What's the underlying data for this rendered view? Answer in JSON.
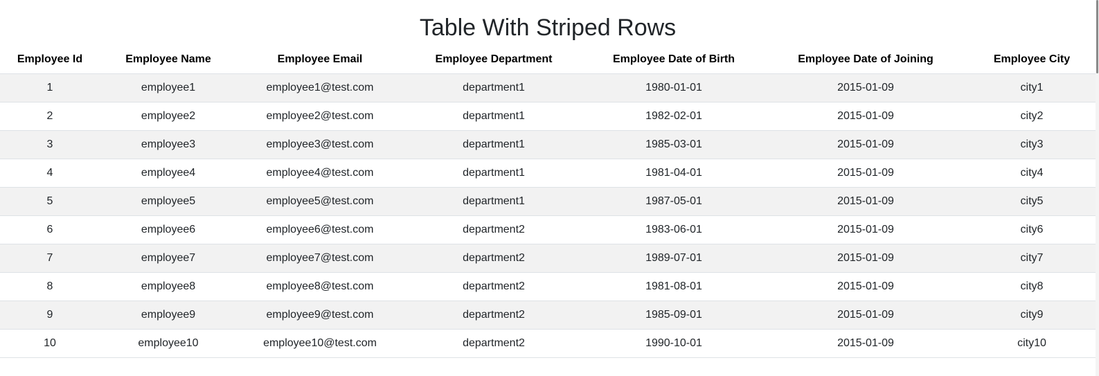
{
  "page": {
    "title": "Table With Striped Rows"
  },
  "table": {
    "headers": [
      "Employee Id",
      "Employee Name",
      "Employee Email",
      "Employee Department",
      "Employee Date of Birth",
      "Employee Date of Joining",
      "Employee City"
    ],
    "rows": [
      [
        "1",
        "employee1",
        "employee1@test.com",
        "department1",
        "1980-01-01",
        "2015-01-09",
        "city1"
      ],
      [
        "2",
        "employee2",
        "employee2@test.com",
        "department1",
        "1982-02-01",
        "2015-01-09",
        "city2"
      ],
      [
        "3",
        "employee3",
        "employee3@test.com",
        "department1",
        "1985-03-01",
        "2015-01-09",
        "city3"
      ],
      [
        "4",
        "employee4",
        "employee4@test.com",
        "department1",
        "1981-04-01",
        "2015-01-09",
        "city4"
      ],
      [
        "5",
        "employee5",
        "employee5@test.com",
        "department1",
        "1987-05-01",
        "2015-01-09",
        "city5"
      ],
      [
        "6",
        "employee6",
        "employee6@test.com",
        "department2",
        "1983-06-01",
        "2015-01-09",
        "city6"
      ],
      [
        "7",
        "employee7",
        "employee7@test.com",
        "department2",
        "1989-07-01",
        "2015-01-09",
        "city7"
      ],
      [
        "8",
        "employee8",
        "employee8@test.com",
        "department2",
        "1981-08-01",
        "2015-01-09",
        "city8"
      ],
      [
        "9",
        "employee9",
        "employee9@test.com",
        "department2",
        "1985-09-01",
        "2015-01-09",
        "city9"
      ],
      [
        "10",
        "employee10",
        "employee10@test.com",
        "department2",
        "1990-10-01",
        "2015-01-09",
        "city10"
      ]
    ]
  },
  "colors": {
    "stripe": "#f2f2f2",
    "border": "#dee2e6",
    "text": "#212529"
  }
}
